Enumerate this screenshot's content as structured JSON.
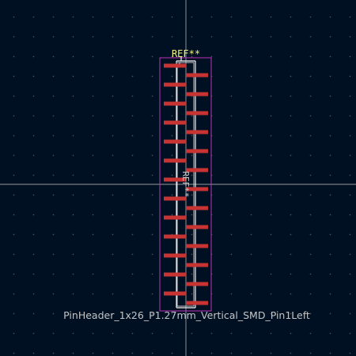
{
  "footprint": {
    "reference": "REF**",
    "fab_reference": "REF**",
    "value": "PinHeader_1x26_P1.27mm_Vertical_SMD_Pin1Left",
    "pin_count": 26,
    "pin1_side": "left"
  },
  "colors": {
    "background": "#001023",
    "grid_dot": "#848484",
    "crosshair": "#c8c8c8",
    "courtyard": "#c02fbc",
    "fab_outline": "#c8c8c8",
    "silkscreen": "#f2f2f2",
    "pad": "#c83434",
    "reference_text": "#f2f27a",
    "value_text": "#c4c4c4"
  },
  "icons": {
    "origin_marker": "crosshair-icon"
  }
}
